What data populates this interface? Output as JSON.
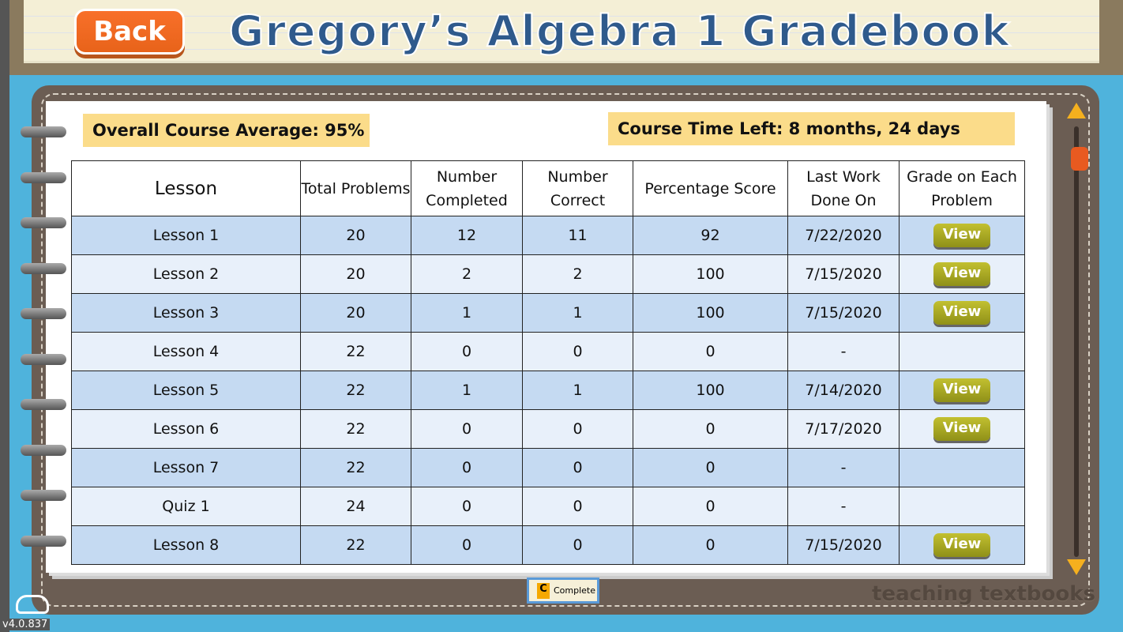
{
  "header": {
    "back_label": "Back",
    "title": "Gregory’s Algebra 1 Gradebook"
  },
  "summary": {
    "average": "Overall Course Average: 95%",
    "time_left": "Course Time Left:  8 months, 24 days"
  },
  "table": {
    "columns": [
      "Lesson",
      "Total Problems",
      "Number Completed",
      "Number Correct",
      "Percentage Score",
      "Last Work Done On",
      "Grade on Each Problem"
    ],
    "view_label": "View",
    "rows": [
      {
        "lesson": "Lesson 1",
        "total": "20",
        "completed": "12",
        "correct": "11",
        "pct": "92",
        "last": "7/22/2020",
        "view": true
      },
      {
        "lesson": "Lesson 2",
        "total": "20",
        "completed": "2",
        "correct": "2",
        "pct": "100",
        "last": "7/15/2020",
        "view": true
      },
      {
        "lesson": "Lesson 3",
        "total": "20",
        "completed": "1",
        "correct": "1",
        "pct": "100",
        "last": "7/15/2020",
        "view": true
      },
      {
        "lesson": "Lesson 4",
        "total": "22",
        "completed": "0",
        "correct": "0",
        "pct": "0",
        "last": "-",
        "view": false
      },
      {
        "lesson": "Lesson 5",
        "total": "22",
        "completed": "1",
        "correct": "1",
        "pct": "100",
        "last": "7/14/2020",
        "view": true
      },
      {
        "lesson": "Lesson 6",
        "total": "22",
        "completed": "0",
        "correct": "0",
        "pct": "0",
        "last": "7/17/2020",
        "view": true
      },
      {
        "lesson": "Lesson 7",
        "total": "22",
        "completed": "0",
        "correct": "0",
        "pct": "0",
        "last": "-",
        "view": false
      },
      {
        "lesson": "Quiz 1",
        "total": "24",
        "completed": "0",
        "correct": "0",
        "pct": "0",
        "last": "-",
        "view": false
      },
      {
        "lesson": "Lesson 8",
        "total": "22",
        "completed": "0",
        "correct": "0",
        "pct": "0",
        "last": "7/15/2020",
        "view": true
      }
    ]
  },
  "footer": {
    "complete_icon": "C",
    "complete_label": "Complete",
    "brand": "teaching textbooks",
    "version": "v4.0.837"
  },
  "colors": {
    "accent": "#e8631a",
    "title": "#2f5a8c",
    "row_odd": "#c5daf2",
    "row_even": "#e8f0fa",
    "view_button": "#a8a824"
  }
}
